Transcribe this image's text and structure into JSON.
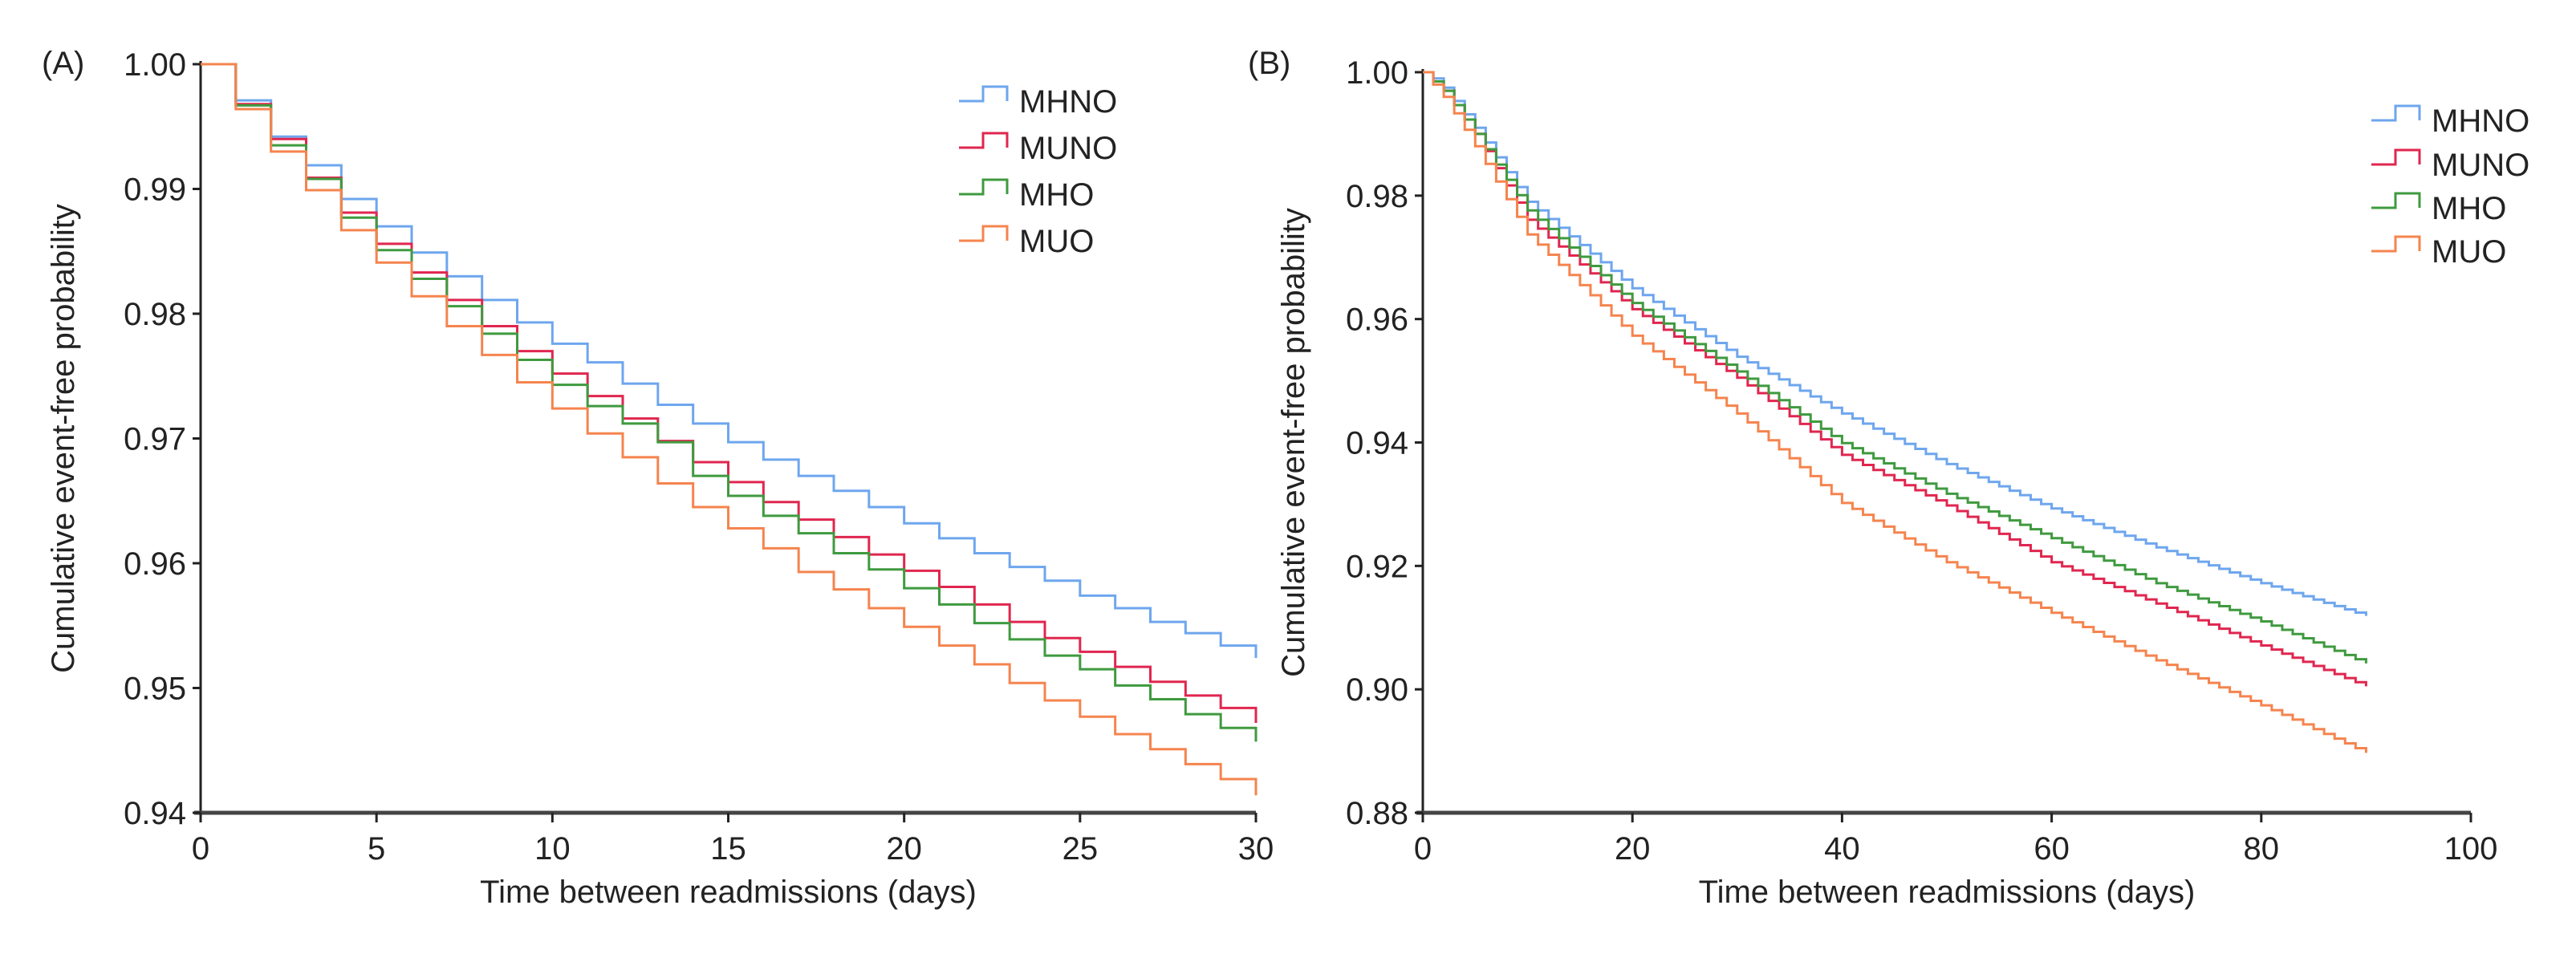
{
  "chart_data": [
    {
      "type": "line",
      "panel_label": "(A)",
      "step": true,
      "xlabel": "Time between readmissions (days)",
      "ylabel": "Cumulative event-free probability",
      "xlim": [
        0,
        30
      ],
      "ylim": [
        0.94,
        1.0
      ],
      "xticks": [
        "0",
        "5",
        "10",
        "15",
        "20",
        "25",
        "30"
      ],
      "xtick_values": [
        0,
        5,
        10,
        15,
        20,
        25,
        30
      ],
      "yticks": [
        "1.00",
        "0.99",
        "0.98",
        "0.97",
        "0.96",
        "0.95",
        "0.94"
      ],
      "ytick_values": [
        1.0,
        0.99,
        0.98,
        0.97,
        0.96,
        0.95,
        0.94
      ],
      "legend_position": "top-right",
      "x": [
        0,
        1,
        2,
        3,
        4,
        5,
        6,
        7,
        8,
        9,
        10,
        11,
        12,
        13,
        14,
        15,
        16,
        17,
        18,
        19,
        20,
        21,
        22,
        23,
        24,
        25,
        26,
        27,
        28,
        29,
        30
      ],
      "series": [
        {
          "name": "MHNO",
          "color": "#6ea6ee",
          "values": [
            1.0,
            0.9971,
            0.9942,
            0.9919,
            0.9892,
            0.987,
            0.9849,
            0.983,
            0.9811,
            0.9793,
            0.9776,
            0.9761,
            0.9744,
            0.9727,
            0.9712,
            0.9697,
            0.9683,
            0.967,
            0.9658,
            0.9645,
            0.9632,
            0.962,
            0.9608,
            0.9597,
            0.9586,
            0.9574,
            0.9564,
            0.9553,
            0.9544,
            0.9534,
            0.9524
          ]
        },
        {
          "name": "MUNO",
          "color": "#e0264f",
          "values": [
            1.0,
            0.9968,
            0.994,
            0.9909,
            0.9881,
            0.9856,
            0.9833,
            0.9811,
            0.979,
            0.977,
            0.9752,
            0.9734,
            0.9716,
            0.9698,
            0.9681,
            0.9665,
            0.9649,
            0.9635,
            0.9621,
            0.9607,
            0.9594,
            0.9581,
            0.9567,
            0.9553,
            0.954,
            0.9529,
            0.9517,
            0.9505,
            0.9494,
            0.9484,
            0.9472
          ]
        },
        {
          "name": "MHO",
          "color": "#3f9a3f",
          "values": [
            1.0,
            0.9967,
            0.9935,
            0.9908,
            0.9877,
            0.9851,
            0.9828,
            0.9806,
            0.9784,
            0.9763,
            0.9743,
            0.9726,
            0.9712,
            0.9697,
            0.967,
            0.9654,
            0.9638,
            0.9624,
            0.9608,
            0.9595,
            0.958,
            0.9567,
            0.9552,
            0.9539,
            0.9526,
            0.9515,
            0.9502,
            0.9491,
            0.9479,
            0.9468,
            0.9457
          ]
        },
        {
          "name": "MUO",
          "color": "#f5844e",
          "values": [
            1.0,
            0.9964,
            0.993,
            0.9899,
            0.9867,
            0.9841,
            0.9814,
            0.979,
            0.9767,
            0.9745,
            0.9724,
            0.9704,
            0.9685,
            0.9664,
            0.9645,
            0.9628,
            0.9612,
            0.9593,
            0.9579,
            0.9564,
            0.9549,
            0.9534,
            0.9519,
            0.9504,
            0.949,
            0.9477,
            0.9463,
            0.9451,
            0.9439,
            0.9427,
            0.9414
          ]
        }
      ]
    },
    {
      "type": "line",
      "panel_label": "(B)",
      "step": true,
      "xlabel": "Time between readmissions (days)",
      "ylabel": "Cumulative event-free probability",
      "xlim": [
        0,
        100
      ],
      "ylim": [
        0.88,
        1.0
      ],
      "xticks": [
        "0",
        "20",
        "40",
        "60",
        "80",
        "100"
      ],
      "xtick_values": [
        0,
        20,
        40,
        60,
        80,
        100
      ],
      "yticks": [
        "1.00",
        "0.98",
        "0.96",
        "0.94",
        "0.92",
        "0.90",
        "0.88"
      ],
      "ytick_values": [
        1.0,
        0.98,
        0.96,
        0.94,
        0.92,
        0.9,
        0.88
      ],
      "legend_position": "top-right",
      "x": [
        0,
        1,
        2,
        5,
        10,
        20,
        30,
        40,
        50,
        60,
        70,
        80,
        90
      ],
      "series": [
        {
          "name": "MHNO",
          "color": "#6ea6ee",
          "values": [
            1.0,
            0.999,
            0.9975,
            0.991,
            0.979,
            0.965,
            0.9539,
            0.9447,
            0.9365,
            0.9293,
            0.923,
            0.9172,
            0.9119
          ]
        },
        {
          "name": "MUNO",
          "color": "#e0264f",
          "values": [
            1.0,
            0.9985,
            0.997,
            0.99,
            0.9761,
            0.9616,
            0.9505,
            0.938,
            0.9298,
            0.9206,
            0.9139,
            0.9071,
            0.9005
          ]
        },
        {
          "name": "MHO",
          "color": "#3f9a3f",
          "values": [
            1.0,
            0.9985,
            0.997,
            0.99,
            0.9776,
            0.9626,
            0.9515,
            0.9399,
            0.9317,
            0.9245,
            0.9172,
            0.911,
            0.9042
          ]
        },
        {
          "name": "MUO",
          "color": "#f5844e",
          "values": [
            1.0,
            0.998,
            0.996,
            0.988,
            0.9737,
            0.9573,
            0.9447,
            0.9302,
            0.9206,
            0.9124,
            0.9047,
            0.8974,
            0.8897
          ]
        }
      ]
    }
  ]
}
